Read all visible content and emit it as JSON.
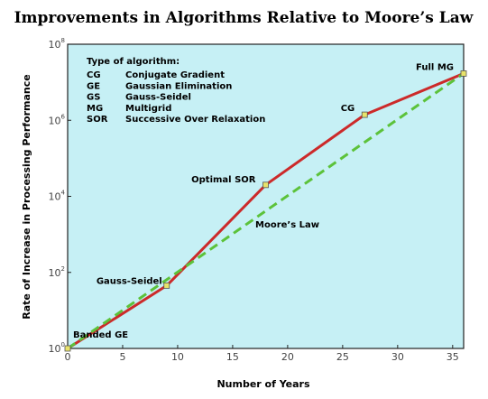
{
  "chart_data": {
    "type": "line",
    "title": "Improvements in Algorithms Relative to Moore’s Law",
    "xlabel": "Number of Years",
    "ylabel": "Rate of Increase in Processing Performance",
    "xlim": [
      0,
      36
    ],
    "ylim": [
      1,
      100000000
    ],
    "yscale": "log",
    "xticks": [
      "0",
      "5",
      "10",
      "15",
      "20",
      "25",
      "30",
      "35"
    ],
    "xtick_values": [
      0,
      5,
      10,
      15,
      20,
      25,
      30,
      35
    ],
    "yticks": [
      {
        "base": "10",
        "exp": "0",
        "value": 1
      },
      {
        "base": "10",
        "exp": "2",
        "value": 100
      },
      {
        "base": "10",
        "exp": "4",
        "value": 10000
      },
      {
        "base": "10",
        "exp": "6",
        "value": 1000000
      },
      {
        "base": "10",
        "exp": "8",
        "value": 100000000
      }
    ],
    "grid": false,
    "plot_background": "#c6f0f5",
    "series": [
      {
        "style": "solid",
        "color": "#cc2a2a",
        "x": [
          0,
          9,
          18,
          27,
          36
        ],
        "y": [
          1,
          45,
          20000,
          1400000,
          17000000
        ]
      },
      {
        "style": "dashed",
        "color": "#5cc23a",
        "x": [
          0,
          36
        ],
        "y": [
          1,
          17000000
        ]
      }
    ],
    "markers": [
      {
        "x": 0,
        "y": 1,
        "label": "Banded GE"
      },
      {
        "x": 9,
        "y": 45,
        "label": "Gauss-Seidel"
      },
      {
        "x": 18,
        "y": 20000,
        "label": "Optimal SOR"
      },
      {
        "x": 27,
        "y": 1400000,
        "label": "CG"
      },
      {
        "x": 36,
        "y": 17000000,
        "label": "Full MG"
      }
    ],
    "marker_color": "#e8e36a",
    "annotations": [
      {
        "text": "Moore’s Law"
      }
    ],
    "legend": {
      "title": "Type of algorithm:",
      "placement": "top-left",
      "items": [
        {
          "abbr": "CG",
          "name": "Conjugate Gradient"
        },
        {
          "abbr": "GE",
          "name": "Gaussian Elimination"
        },
        {
          "abbr": "GS",
          "name": "Gauss-Seidel"
        },
        {
          "abbr": "MG",
          "name": "Multigrid"
        },
        {
          "abbr": "SOR",
          "name": "Successive Over Relaxation"
        }
      ]
    }
  }
}
